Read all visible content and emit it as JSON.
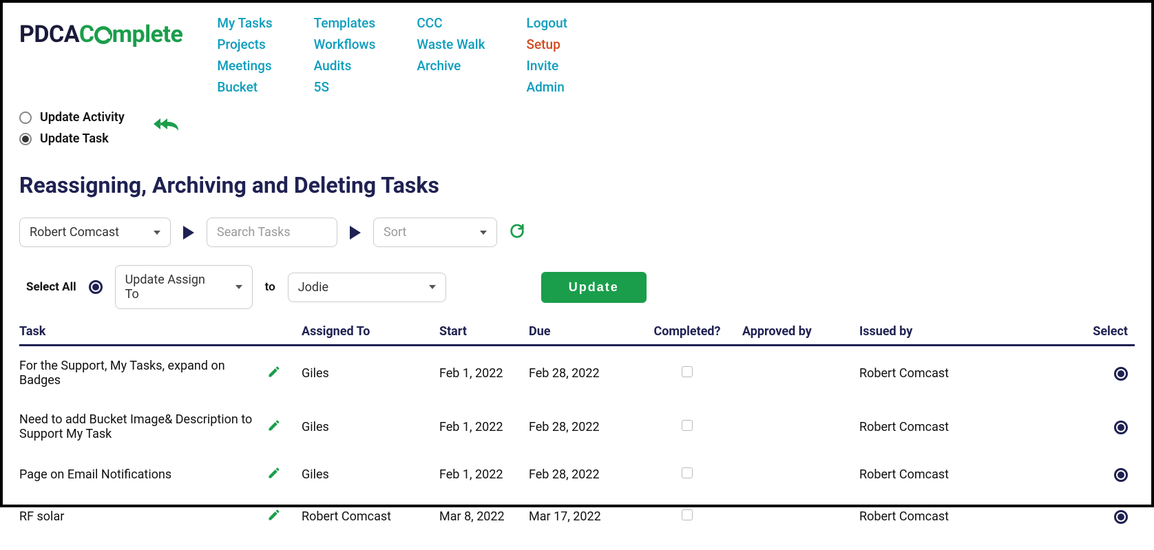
{
  "logo": {
    "part1": "PDCA",
    "part2": "C",
    "part3": "mplete"
  },
  "nav": {
    "col1": [
      "My Tasks",
      "Projects",
      "Meetings",
      "Bucket"
    ],
    "col2": [
      "Templates",
      "Workflows",
      "Audits",
      "5S"
    ],
    "col3": [
      "CCC",
      "Waste Walk",
      "Archive"
    ],
    "col4": [
      "Logout",
      "Setup",
      "Invite",
      "Admin"
    ],
    "active": "Setup"
  },
  "mode": {
    "opt1": "Update Activity",
    "opt2": "Update Task",
    "selected": "Update Task"
  },
  "page_title": "Reassigning, Archiving and Deleting Tasks",
  "filters": {
    "user_select": "Robert Comcast",
    "search_placeholder": "Search Tasks",
    "sort_placeholder": "Sort"
  },
  "action_bar": {
    "select_all_label": "Select All",
    "select_all_checked": true,
    "bulk_action": "Update Assign To",
    "to_label": "to",
    "assignee": "Jodie",
    "update_btn": "Update"
  },
  "columns": {
    "task": "Task",
    "assigned": "Assigned To",
    "start": "Start",
    "due": "Due",
    "completed": "Completed?",
    "approved": "Approved by",
    "issued": "Issued by",
    "select": "Select"
  },
  "rows": [
    {
      "task": "For the Support, My Tasks, expand on Badges",
      "assigned": "Giles",
      "start": "Feb 1, 2022",
      "due": "Feb 28, 2022",
      "completed": false,
      "approved": "",
      "issued": "Robert Comcast",
      "selected": true
    },
    {
      "task": "Need to add Bucket Image& Description to Support My Task",
      "assigned": "Giles",
      "start": "Feb 1, 2022",
      "due": "Feb 28, 2022",
      "completed": false,
      "approved": "",
      "issued": "Robert Comcast",
      "selected": true
    },
    {
      "task": "Page on Email Notifications",
      "assigned": "Giles",
      "start": "Feb 1, 2022",
      "due": "Feb 28, 2022",
      "completed": false,
      "approved": "",
      "issued": "Robert Comcast",
      "selected": true
    },
    {
      "task": "RF solar",
      "assigned": "Robert Comcast",
      "start": "Mar 8, 2022",
      "due": "Mar 17, 2022",
      "completed": false,
      "approved": "",
      "issued": "Robert Comcast",
      "selected": true
    }
  ],
  "colors": {
    "accent_green": "#1a9e4b",
    "accent_teal": "#0d9dbd",
    "accent_orange": "#d14a1f",
    "text_dark": "#1f2152"
  }
}
